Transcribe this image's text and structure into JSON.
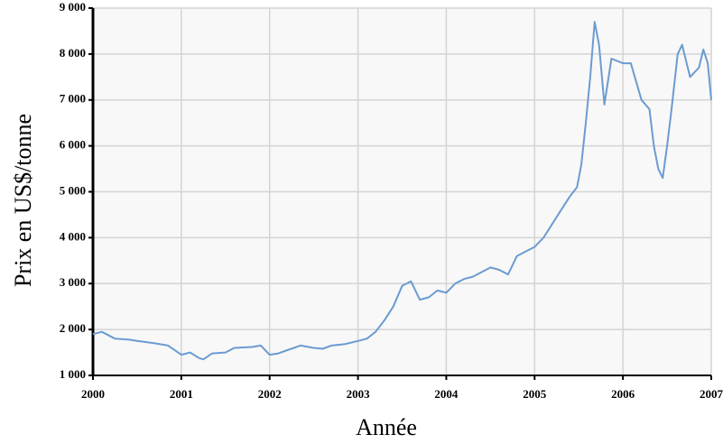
{
  "chart_data": {
    "type": "line",
    "xlabel": "Année",
    "ylabel": "Prix en US$/tonne",
    "color": "#6b9bd1",
    "grid": true,
    "xlim": [
      2000,
      2007
    ],
    "xticks": [
      2000,
      2001,
      2002,
      2003,
      2004,
      2005,
      2006,
      2007
    ],
    "ylim": [
      1000,
      9000
    ],
    "yticks": [
      {
        "value": 1000,
        "label": "1 000"
      },
      {
        "value": 2000,
        "label": "2 000"
      },
      {
        "value": 3000,
        "label": "3 000"
      },
      {
        "value": 4000,
        "label": "4 000"
      },
      {
        "value": 5000,
        "label": "5 000"
      },
      {
        "value": 6000,
        "label": "6 000"
      },
      {
        "value": 7000,
        "label": "7 000"
      },
      {
        "value": 8000,
        "label": "8 000"
      },
      {
        "value": 9000,
        "label": "9 000"
      }
    ],
    "x": [
      2000.0,
      2000.1,
      2000.25,
      2000.4,
      2000.5,
      2000.7,
      2000.85,
      2001.0,
      2001.1,
      2001.2,
      2001.25,
      2001.35,
      2001.5,
      2001.6,
      2001.8,
      2001.9,
      2002.0,
      2002.1,
      2002.2,
      2002.35,
      2002.5,
      2002.6,
      2002.7,
      2002.85,
      2003.0,
      2003.1,
      2003.2,
      2003.3,
      2003.4,
      2003.5,
      2003.6,
      2003.7,
      2003.8,
      2003.9,
      2004.0,
      2004.1,
      2004.2,
      2004.3,
      2004.4,
      2004.5,
      2004.6,
      2004.7,
      2004.8,
      2004.9,
      2005.0,
      2005.1,
      2005.2,
      2005.3,
      2005.4,
      2005.48,
      2005.53,
      2005.58,
      2005.63,
      2005.68,
      2005.73,
      2005.79,
      2005.87,
      2006.0,
      2006.09,
      2006.21,
      2006.3,
      2006.35,
      2006.4,
      2006.45,
      2006.5,
      2006.55,
      2006.62,
      2006.67,
      2006.76,
      2006.86,
      2006.91,
      2006.96,
      2007.0
    ],
    "values": [
      1900,
      1950,
      1800,
      1780,
      1750,
      1700,
      1650,
      1450,
      1500,
      1380,
      1350,
      1480,
      1500,
      1600,
      1620,
      1650,
      1450,
      1480,
      1550,
      1650,
      1600,
      1580,
      1650,
      1680,
      1750,
      1800,
      1950,
      2200,
      2500,
      2950,
      3050,
      2650,
      2700,
      2850,
      2800,
      3000,
      3100,
      3150,
      3250,
      3350,
      3300,
      3200,
      3600,
      3700,
      3800,
      4000,
      4300,
      4600,
      4900,
      5100,
      5600,
      6500,
      7500,
      8700,
      8200,
      6900,
      7900,
      7800,
      7800,
      7000,
      6800,
      6000,
      5500,
      5300,
      6000,
      6800,
      8000,
      8200,
      7500,
      7700,
      8100,
      7800,
      7000
    ]
  }
}
